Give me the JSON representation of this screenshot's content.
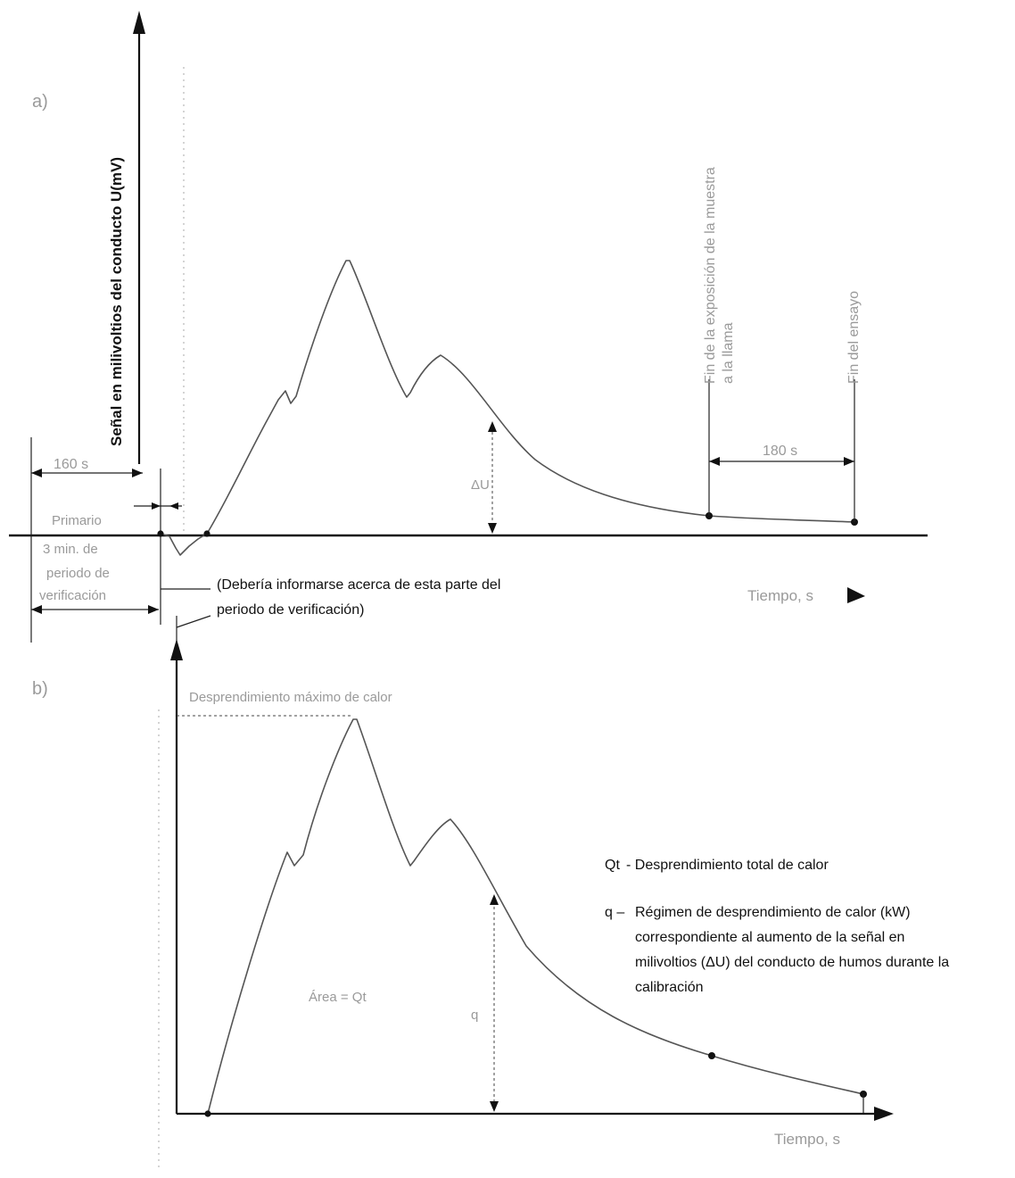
{
  "panel_a": {
    "tag": "a)",
    "y_axis_label": "Señal en milivoltios del conducto U(mV)",
    "faint_vertical_labels": [
      "",
      ""
    ],
    "dim_160s": "160 s",
    "primary_period": [
      "Primario",
      "3 min. de",
      "periodo de",
      "verificación"
    ],
    "note": [
      "(Debería informarse acerca de esta parte del",
      "periodo de verificación)"
    ],
    "end_exposure_label": [
      "Fin de la exposición de la muestra",
      "a la llama"
    ],
    "end_test_label": "Fin del ensayo",
    "dim_180s": "180 s",
    "delta_label": "ΔU",
    "x_axis_label": "Tiempo, s"
  },
  "panel_b": {
    "tag": "b)",
    "peak_label": "Desprendimiento máximo de calor",
    "area_label": "Área = Qt",
    "q_label": "q",
    "x_axis_label": "Tiempo, s"
  },
  "legend": {
    "qt_symbol": "Qt",
    "qt_text": "- Desprendimiento total de calor",
    "q_symbol": "q –",
    "q_lines": [
      "Régimen de desprendimiento de calor (kW)",
      "correspondiente al aumento de la señal en",
      "milivoltios (ΔU) del conducto de humos durante la",
      "calibración"
    ]
  }
}
